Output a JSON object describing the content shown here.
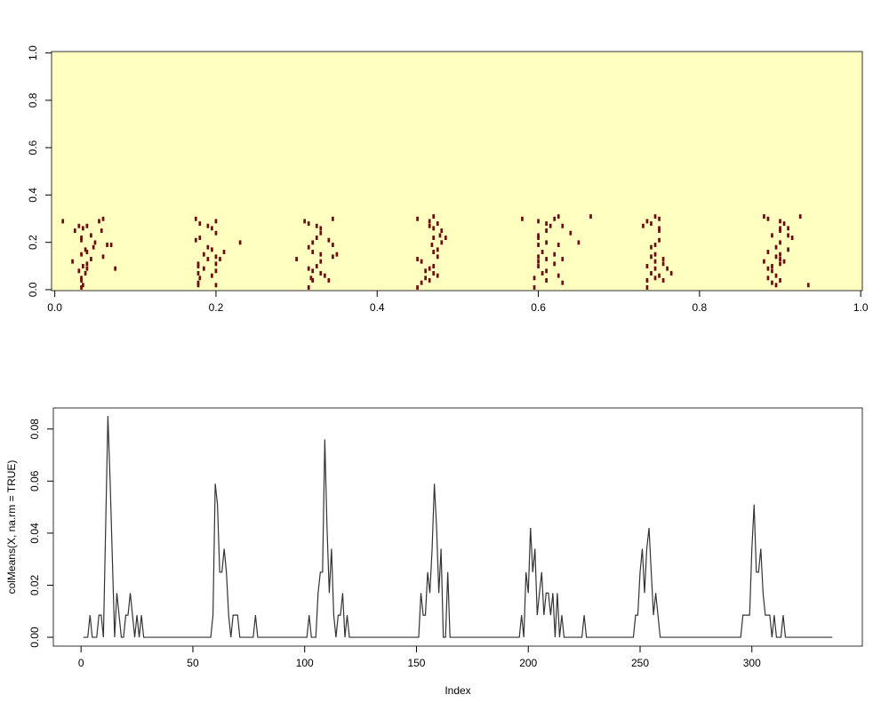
{
  "chart_data": [
    {
      "type": "heatmap",
      "background": "#FFFFC0",
      "color": "#6B0D0D",
      "xlim": [
        -0.004,
        1.002
      ],
      "ylim": [
        -0.004,
        1.006
      ],
      "xticks": [
        {
          "value": 0,
          "label": "0.0"
        },
        {
          "value": 0.2,
          "label": "0.2"
        },
        {
          "value": 0.4,
          "label": "0.4"
        },
        {
          "value": 0.6,
          "label": "0.6"
        },
        {
          "value": 0.8,
          "label": "0.8"
        },
        {
          "value": 1,
          "label": "1.0"
        }
      ],
      "yticks": [
        {
          "value": 0,
          "label": "0.0"
        },
        {
          "value": 0.2,
          "label": "0.2"
        },
        {
          "value": 0.4,
          "label": "0.4"
        },
        {
          "value": 0.6,
          "label": "0.6"
        },
        {
          "value": 0.8,
          "label": "0.8"
        },
        {
          "value": 1,
          "label": "1.0"
        }
      ],
      "x": [
        0.01,
        0.03,
        0.035,
        0.04,
        0.025,
        0.033,
        0.033,
        0.045,
        0.055,
        0.06,
        0.058,
        0.05,
        0.048,
        0.038,
        0.033,
        0.04,
        0.06,
        0.065,
        0.07,
        0.022,
        0.04,
        0.035,
        0.03,
        0.038,
        0.033,
        0.033,
        0.035,
        0.033,
        0.045,
        0.075,
        0.04,
        0.175,
        0.18,
        0.19,
        0.2,
        0.195,
        0.2,
        0.18,
        0.175,
        0.19,
        0.195,
        0.185,
        0.2,
        0.21,
        0.205,
        0.19,
        0.178,
        0.178,
        0.185,
        0.2,
        0.178,
        0.18,
        0.178,
        0.178,
        0.195,
        0.2,
        0.23,
        0.2,
        0.31,
        0.315,
        0.325,
        0.33,
        0.345,
        0.33,
        0.325,
        0.34,
        0.32,
        0.315,
        0.345,
        0.32,
        0.33,
        0.345,
        0.35,
        0.3,
        0.33,
        0.325,
        0.315,
        0.32,
        0.33,
        0.318,
        0.32,
        0.335,
        0.34,
        0.315,
        0.45,
        0.465,
        0.47,
        0.475,
        0.465,
        0.47,
        0.48,
        0.478,
        0.47,
        0.485,
        0.468,
        0.48,
        0.475,
        0.47,
        0.475,
        0.45,
        0.455,
        0.47,
        0.465,
        0.46,
        0.47,
        0.46,
        0.465,
        0.455,
        0.45,
        0.475,
        0.58,
        0.6,
        0.61,
        0.62,
        0.625,
        0.615,
        0.63,
        0.61,
        0.6,
        0.6,
        0.64,
        0.6,
        0.61,
        0.625,
        0.65,
        0.605,
        0.6,
        0.62,
        0.61,
        0.63,
        0.6,
        0.62,
        0.6,
        0.61,
        0.605,
        0.595,
        0.625,
        0.63,
        0.595,
        0.665,
        0.61,
        0.735,
        0.745,
        0.75,
        0.73,
        0.74,
        0.75,
        0.75,
        0.75,
        0.745,
        0.74,
        0.745,
        0.74,
        0.745,
        0.755,
        0.755,
        0.735,
        0.745,
        0.76,
        0.74,
        0.75,
        0.735,
        0.745,
        0.735,
        0.755,
        0.765,
        0.88,
        0.885,
        0.9,
        0.905,
        0.91,
        0.9,
        0.9,
        0.925,
        0.89,
        0.91,
        0.915,
        0.9,
        0.895,
        0.91,
        0.885,
        0.9,
        0.895,
        0.905,
        0.88,
        0.9,
        0.89,
        0.885,
        0.89,
        0.895,
        0.885,
        0.9,
        0.89,
        0.895,
        0.935,
        0.9
      ],
      "y": [
        0.28,
        0.26,
        0.25,
        0.26,
        0.24,
        0.21,
        0.2,
        0.22,
        0.28,
        0.29,
        0.24,
        0.19,
        0.17,
        0.16,
        0.14,
        0.15,
        0.13,
        0.18,
        0.18,
        0.11,
        0.1,
        0.09,
        0.07,
        0.06,
        0.04,
        0.03,
        0.01,
        0,
        0.12,
        0.08,
        0.08,
        0.29,
        0.27,
        0.26,
        0.28,
        0.25,
        0.23,
        0.21,
        0.2,
        0.17,
        0.16,
        0.14,
        0.13,
        0.15,
        0.12,
        0.12,
        0.1,
        0.09,
        0.08,
        0.1,
        0.06,
        0.04,
        0.02,
        0.01,
        0.05,
        0.07,
        0.19,
        0.01,
        0.28,
        0.27,
        0.26,
        0.25,
        0.29,
        0.23,
        0.21,
        0.2,
        0.19,
        0.17,
        0.18,
        0.15,
        0.14,
        0.13,
        0.14,
        0.12,
        0.11,
        0.09,
        0.08,
        0.07,
        0.06,
        0.04,
        0.03,
        0.05,
        0.03,
        0,
        0.29,
        0.28,
        0.3,
        0.27,
        0.26,
        0.25,
        0.24,
        0.22,
        0.21,
        0.21,
        0.18,
        0.19,
        0.16,
        0.15,
        0.13,
        0.12,
        0.11,
        0.09,
        0.08,
        0.07,
        0.06,
        0.04,
        0.03,
        0.02,
        0,
        0.05,
        0.29,
        0.28,
        0.27,
        0.29,
        0.3,
        0.26,
        0.26,
        0.24,
        0.22,
        0.21,
        0.23,
        0.18,
        0.19,
        0.18,
        0.19,
        0.15,
        0.13,
        0.14,
        0.12,
        0.12,
        0.11,
        0.1,
        0.09,
        0.07,
        0.06,
        0.04,
        0.05,
        0.02,
        0,
        0.3,
        0.03,
        0.28,
        0.3,
        0.29,
        0.26,
        0.27,
        0.25,
        0.24,
        0.2,
        0.18,
        0.17,
        0.14,
        0.13,
        0.11,
        0.12,
        0.1,
        0.09,
        0.08,
        0.08,
        0.06,
        0.05,
        0.03,
        0.04,
        0,
        0.03,
        0.06,
        0.3,
        0.29,
        0.28,
        0.27,
        0.25,
        0.24,
        0.25,
        0.3,
        0.22,
        0.22,
        0.21,
        0.19,
        0.17,
        0.16,
        0.15,
        0.14,
        0.13,
        0.11,
        0.11,
        0.1,
        0.09,
        0.08,
        0.07,
        0.05,
        0.04,
        0.03,
        0.02,
        0.01,
        0.01,
        0.12
      ]
    },
    {
      "type": "line",
      "color": "#333333",
      "xlabel": "Index",
      "ylabel": "colMeans(X, na.rm = TRUE)",
      "xlim": [
        -12.4,
        349.4
      ],
      "ylim": [
        -0.0034,
        0.0881
      ],
      "xticks": [
        0,
        50,
        100,
        150,
        200,
        250,
        300
      ],
      "yticks": [
        {
          "value": 0,
          "label": "0.00"
        },
        {
          "value": 0.02,
          "label": "0.02"
        },
        {
          "value": 0.04,
          "label": "0.04"
        },
        {
          "value": 0.06,
          "label": "0.06"
        },
        {
          "value": 0.08,
          "label": "0.08"
        }
      ],
      "x": [
        1,
        3,
        4,
        5,
        7,
        8,
        9,
        10,
        12,
        13,
        14,
        15,
        16,
        17,
        18,
        19,
        20,
        21,
        22,
        23,
        24,
        25,
        26,
        27,
        28,
        58,
        59,
        60,
        61,
        62,
        63,
        64,
        65,
        66,
        67,
        68,
        69,
        70,
        71,
        77,
        78,
        79,
        101,
        102,
        103,
        105,
        106,
        107,
        108,
        109,
        110,
        111,
        112,
        113,
        114,
        115,
        116,
        117,
        118,
        119,
        120,
        151,
        152,
        153,
        154,
        155,
        156,
        157,
        158,
        159,
        160,
        161,
        162,
        163,
        164,
        165,
        196,
        197,
        198,
        199,
        200,
        201,
        202,
        203,
        204,
        205,
        206,
        207,
        208,
        209,
        210,
        211,
        212,
        213,
        214,
        215,
        216,
        224,
        225,
        226,
        247,
        248,
        249,
        250,
        251,
        252,
        253,
        254,
        255,
        256,
        257,
        258,
        259,
        295,
        296,
        299,
        300,
        301,
        302,
        303,
        304,
        305,
        306,
        308,
        309,
        310,
        311,
        313,
        314,
        315,
        336
      ],
      "values": [
        0,
        0,
        0.0085,
        0,
        0,
        0.0085,
        0.0085,
        0,
        0.085,
        0.06,
        0.03,
        0,
        0.017,
        0.0085,
        0,
        0,
        0.0085,
        0.0085,
        0.017,
        0.0085,
        0,
        0.0085,
        0,
        0.0085,
        0,
        0,
        0.0085,
        0.059,
        0.051,
        0.025,
        0.025,
        0.034,
        0.025,
        0.0085,
        0,
        0.0085,
        0.0085,
        0.0085,
        0,
        0,
        0.0085,
        0,
        0,
        0.0085,
        0,
        0,
        0.017,
        0.025,
        0.025,
        0.076,
        0.042,
        0.017,
        0.034,
        0.0085,
        0,
        0.0085,
        0.0085,
        0.017,
        0,
        0.0085,
        0,
        0,
        0.017,
        0.0085,
        0.0085,
        0.025,
        0.017,
        0.034,
        0.059,
        0.042,
        0.017,
        0.034,
        0,
        0,
        0.025,
        0,
        0,
        0.0085,
        0,
        0.025,
        0.017,
        0.042,
        0.025,
        0.034,
        0.0085,
        0.017,
        0.025,
        0.0085,
        0.017,
        0.017,
        0.0085,
        0.017,
        0,
        0.017,
        0,
        0.0085,
        0,
        0,
        0.0085,
        0,
        0,
        0.0085,
        0.0085,
        0.025,
        0.034,
        0.017,
        0.034,
        0.042,
        0.025,
        0.0085,
        0.017,
        0.0085,
        0,
        0,
        0.0085,
        0.0085,
        0.034,
        0.051,
        0.025,
        0.025,
        0.034,
        0.017,
        0.0085,
        0.0085,
        0,
        0.0085,
        0,
        0,
        0.0085,
        0,
        0
      ]
    }
  ]
}
